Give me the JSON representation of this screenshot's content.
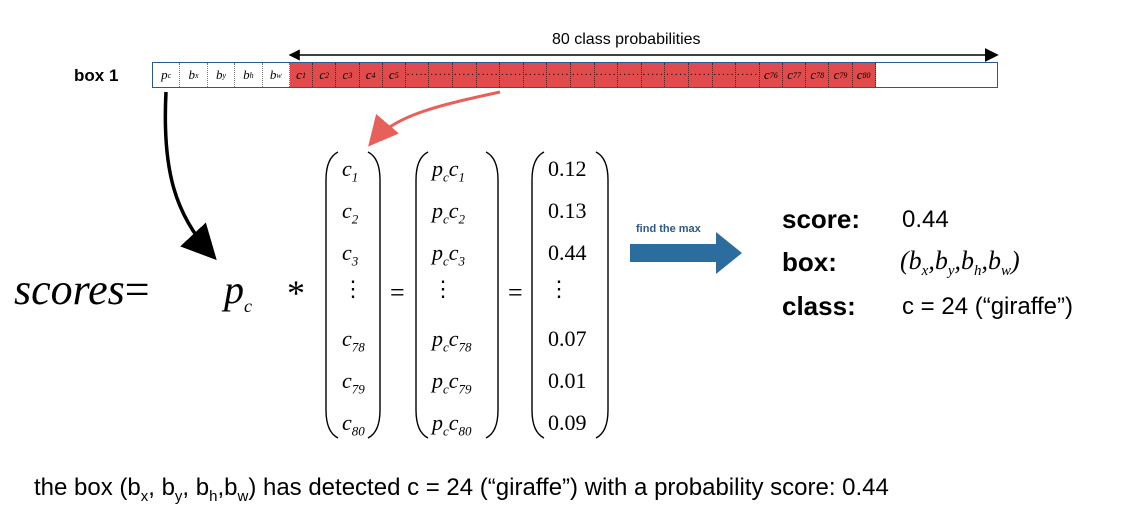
{
  "box_label": "box 1",
  "probs_label": "80 class probabilities",
  "bar_cells": [
    {
      "base": "p",
      "sub": "c",
      "color": "white"
    },
    {
      "base": "b",
      "sub": "x",
      "color": "white"
    },
    {
      "base": "b",
      "sub": "y",
      "color": "white"
    },
    {
      "base": "b",
      "sub": "h",
      "color": "white"
    },
    {
      "base": "b",
      "sub": "w",
      "color": "white"
    },
    {
      "base": "c",
      "sub": "1",
      "color": "red"
    },
    {
      "base": "c",
      "sub": "2",
      "color": "red"
    },
    {
      "base": "c",
      "sub": "3",
      "color": "red"
    },
    {
      "base": "c",
      "sub": "4",
      "color": "red"
    },
    {
      "base": "c",
      "sub": "5",
      "color": "red"
    },
    {
      "base": "…",
      "sub": "",
      "color": "red"
    },
    {
      "base": "…",
      "sub": "",
      "color": "red"
    },
    {
      "base": "…",
      "sub": "",
      "color": "red"
    },
    {
      "base": "…",
      "sub": "",
      "color": "red"
    },
    {
      "base": "…",
      "sub": "",
      "color": "red"
    },
    {
      "base": "…",
      "sub": "",
      "color": "red"
    },
    {
      "base": "…",
      "sub": "",
      "color": "red"
    },
    {
      "base": "…",
      "sub": "",
      "color": "red"
    },
    {
      "base": "…",
      "sub": "",
      "color": "red"
    },
    {
      "base": "…",
      "sub": "",
      "color": "red"
    },
    {
      "base": "…",
      "sub": "",
      "color": "red"
    },
    {
      "base": "…",
      "sub": "",
      "color": "red"
    },
    {
      "base": "…",
      "sub": "",
      "color": "red"
    },
    {
      "base": "…",
      "sub": "",
      "color": "red"
    },
    {
      "base": "…",
      "sub": "",
      "color": "red"
    },
    {
      "base": "c",
      "sub": "76",
      "color": "red"
    },
    {
      "base": "c",
      "sub": "77",
      "color": "red"
    },
    {
      "base": "c",
      "sub": "78",
      "color": "red"
    },
    {
      "base": "c",
      "sub": "79",
      "color": "red"
    },
    {
      "base": "c",
      "sub": "80",
      "color": "red"
    }
  ],
  "formula": {
    "lhs": "scores",
    "equals": "=",
    "pc": "p",
    "pc_sub": "c",
    "times": "*",
    "vec_c": [
      {
        "base": "c",
        "sub": "1"
      },
      {
        "base": "c",
        "sub": "2"
      },
      {
        "base": "c",
        "sub": "3"
      },
      {
        "base": "⋮",
        "sub": ""
      },
      {
        "base": "c",
        "sub": "78"
      },
      {
        "base": "c",
        "sub": "79"
      },
      {
        "base": "c",
        "sub": "80"
      }
    ],
    "vec_pc": [
      {
        "base": "c",
        "sub": "1"
      },
      {
        "base": "c",
        "sub": "2"
      },
      {
        "base": "c",
        "sub": "3"
      },
      {
        "base": "⋮",
        "sub": ""
      },
      {
        "base": "c",
        "sub": "78"
      },
      {
        "base": "c",
        "sub": "79"
      },
      {
        "base": "c",
        "sub": "80"
      }
    ],
    "vec_vals": [
      "0.12",
      "0.13",
      "0.44",
      "⋮",
      "0.07",
      "0.01",
      "0.09"
    ]
  },
  "find_label": "find the max",
  "result": {
    "score_key": "score",
    "score_val": "0.44",
    "box_key": "box",
    "class_key": "class",
    "class_val": "c = 24 (“giraffe”)"
  },
  "bottom": {
    "part1": "the box (b",
    "s1": "x",
    "part2": ", b",
    "s2": "y",
    "part3": ", b",
    "s3": "h",
    "part4": ",b",
    "s4": "w",
    "part5": ") has detected c = 24 (“giraffe”) with a probability score: 0.44"
  },
  "colors": {
    "accent_red": "#e24b4b",
    "arrow_red": "#e8605a",
    "blue": "#2b6d9e",
    "border_blue": "#2b5a8a"
  }
}
